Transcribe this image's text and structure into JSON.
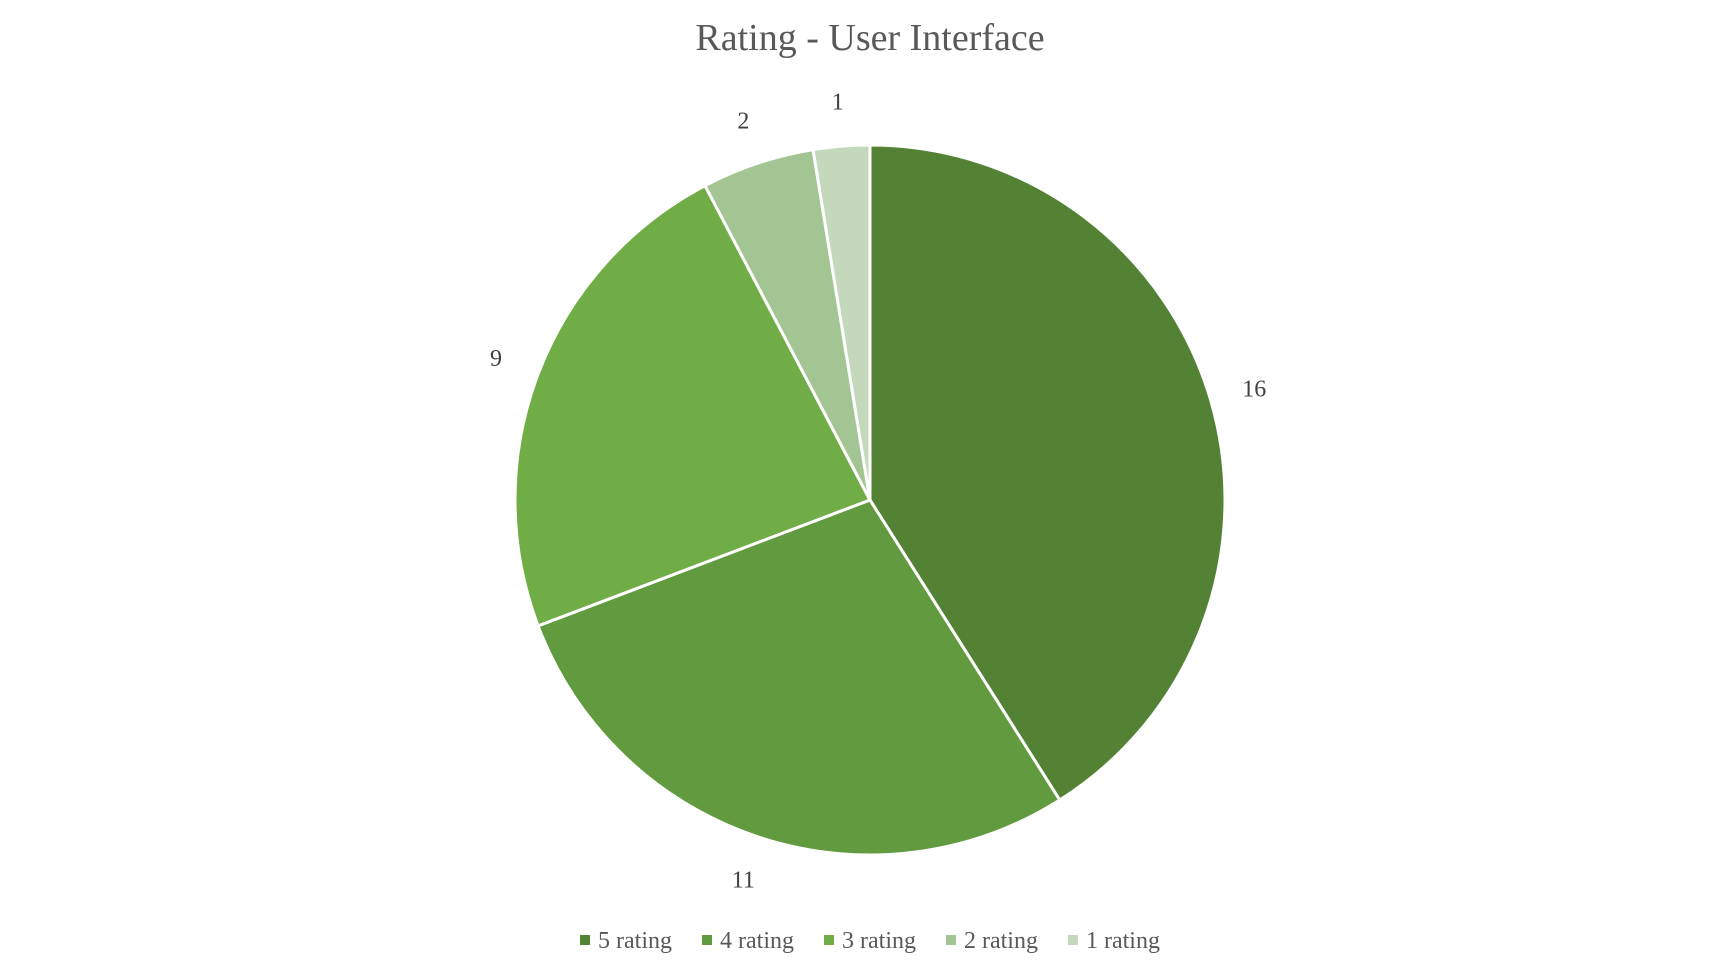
{
  "chart_data": {
    "type": "pie",
    "title": "Rating - User Interface",
    "categories": [
      "5 rating",
      "4 rating",
      "3 rating",
      "2 rating",
      "1 rating"
    ],
    "values": [
      16,
      11,
      9,
      2,
      1
    ],
    "data_labels": [
      "16",
      "11",
      "9",
      "2",
      "1"
    ],
    "colors": [
      "#548235",
      "#629A3F",
      "#70AD47",
      "#A2C593",
      "#C4D8BC"
    ],
    "legend": {
      "position": "bottom",
      "entries": [
        "5 rating",
        "4 rating",
        "3 rating",
        "2 rating",
        "1 rating"
      ]
    },
    "start_angle": "12 o'clock",
    "direction": "clockwise"
  }
}
